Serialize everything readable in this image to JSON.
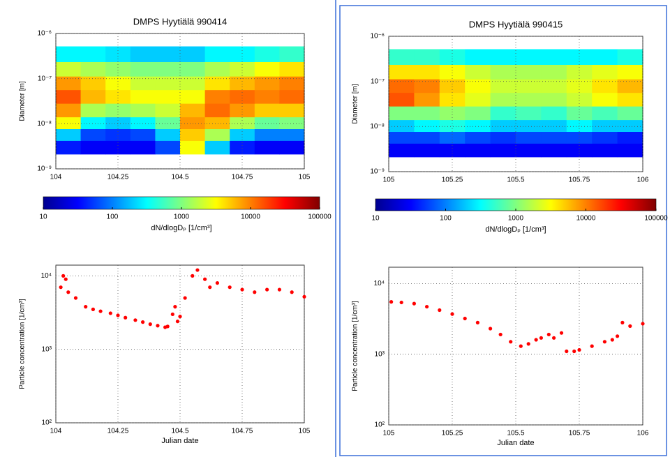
{
  "chart_data": [
    {
      "type": "heatmap",
      "title": "DMPS Hyytiälä 990414",
      "ylabel": "Diameter [m]",
      "x": [
        104.05,
        104.15,
        104.25,
        104.35,
        104.45,
        104.55,
        104.65,
        104.75,
        104.85,
        104.95
      ],
      "y": [
        3e-09,
        6e-09,
        1e-08,
        2e-08,
        4e-08,
        8e-08,
        1.6e-07,
        3.5e-07
      ],
      "z": [
        [
          40,
          30,
          30,
          30,
          60,
          3000,
          200,
          40,
          30,
          30
        ],
        [
          200,
          60,
          50,
          60,
          200,
          5000,
          1500,
          200,
          100,
          100
        ],
        [
          3000,
          300,
          200,
          300,
          800,
          8000,
          6000,
          1500,
          800,
          1000
        ],
        [
          8000,
          1500,
          1200,
          1500,
          2000,
          6000,
          12000,
          8000,
          5000,
          5000
        ],
        [
          15000,
          6000,
          4000,
          3000,
          3000,
          3000,
          10000,
          12000,
          10000,
          12000
        ],
        [
          8000,
          5000,
          3000,
          2000,
          2000,
          2000,
          4000,
          6000,
          8000,
          10000
        ],
        [
          2000,
          1500,
          1200,
          1000,
          1000,
          1000,
          1500,
          2000,
          3000,
          4000
        ],
        [
          300,
          300,
          250,
          200,
          200,
          200,
          300,
          300,
          400,
          500
        ]
      ],
      "xlim": [
        104,
        105
      ],
      "xticks": [
        104,
        104.25,
        104.5,
        104.75,
        105
      ],
      "ylim": [
        1e-09,
        1e-06
      ],
      "yticks": [
        {
          "value": 1e-09,
          "label": "10⁻⁹"
        },
        {
          "value": 1e-08,
          "label": "10⁻⁸"
        },
        {
          "value": 1e-07,
          "label": "10⁻⁷"
        },
        {
          "value": 1e-06,
          "label": "10⁻⁶"
        }
      ],
      "log_y": true,
      "grid": true,
      "colorbar": {
        "label": "dN/dlogDₚ [1/cm³]",
        "lim": [
          10,
          100000
        ],
        "ticks": [
          10,
          100,
          1000,
          10000,
          100000
        ],
        "log": true,
        "colormap": "jet"
      }
    },
    {
      "type": "scatter",
      "xlabel": "Julian date",
      "ylabel": "Particle concentration [1/cm³]",
      "color": "#ff0000",
      "x": [
        104.02,
        104.03,
        104.04,
        104.05,
        104.08,
        104.12,
        104.15,
        104.18,
        104.22,
        104.25,
        104.28,
        104.32,
        104.35,
        104.38,
        104.41,
        104.44,
        104.45,
        104.47,
        104.48,
        104.49,
        104.5,
        104.52,
        104.55,
        104.57,
        104.6,
        104.62,
        104.65,
        104.7,
        104.75,
        104.8,
        104.85,
        104.9,
        104.95,
        105
      ],
      "values": [
        7000,
        10000,
        9000,
        6000,
        5000,
        3800,
        3500,
        3300,
        3100,
        2900,
        2700,
        2500,
        2350,
        2200,
        2100,
        2000,
        2050,
        3000,
        3800,
        2400,
        2800,
        5000,
        10000,
        12000,
        9000,
        7000,
        8000,
        7000,
        6500,
        6000,
        6500,
        6500,
        6000,
        5200
      ],
      "xlim": [
        104,
        105
      ],
      "xticks": [
        104,
        104.25,
        104.5,
        104.75,
        105
      ],
      "ylim": [
        100,
        14000
      ],
      "yticks": [
        {
          "value": 100,
          "label": "10²"
        },
        {
          "value": 1000,
          "label": "10³"
        },
        {
          "value": 10000,
          "label": "10⁴"
        }
      ],
      "log_y": true,
      "grid": true
    },
    {
      "type": "heatmap",
      "title": "DMPS Hyytiälä 990415",
      "ylabel": "Diameter [m]",
      "x": [
        105.05,
        105.15,
        105.25,
        105.35,
        105.45,
        105.55,
        105.65,
        105.75,
        105.85,
        105.95
      ],
      "y": [
        3e-09,
        6e-09,
        1e-08,
        2e-08,
        4e-08,
        8e-08,
        1.6e-07,
        3.5e-07
      ],
      "z": [
        [
          30,
          30,
          30,
          30,
          30,
          30,
          30,
          30,
          30,
          30
        ],
        [
          60,
          60,
          80,
          60,
          50,
          60,
          60,
          60,
          50,
          40
        ],
        [
          200,
          300,
          400,
          300,
          200,
          200,
          200,
          300,
          200,
          200
        ],
        [
          1000,
          1000,
          1200,
          1000,
          500,
          600,
          500,
          800,
          600,
          800
        ],
        [
          15000,
          8000,
          4000,
          2500,
          1500,
          1500,
          1500,
          2000,
          3000,
          4000
        ],
        [
          12000,
          10000,
          5000,
          3000,
          2000,
          2000,
          2000,
          2500,
          4000,
          6000
        ],
        [
          4000,
          4000,
          3000,
          2000,
          1500,
          1500,
          1500,
          2000,
          2500,
          3000
        ],
        [
          500,
          500,
          400,
          300,
          300,
          300,
          300,
          300,
          300,
          400
        ]
      ],
      "xlim": [
        105,
        106
      ],
      "xticks": [
        105,
        105.25,
        105.5,
        105.75,
        106
      ],
      "ylim": [
        1e-09,
        1e-06
      ],
      "yticks": [
        {
          "value": 1e-09,
          "label": "10⁻⁹"
        },
        {
          "value": 1e-08,
          "label": "10⁻⁸"
        },
        {
          "value": 1e-07,
          "label": "10⁻⁷"
        },
        {
          "value": 1e-06,
          "label": "10⁻⁶"
        }
      ],
      "log_y": true,
      "grid": true,
      "colorbar": {
        "label": "dN/dlogDₚ [1/cm³]",
        "lim": [
          10,
          100000
        ],
        "ticks": [
          10,
          100,
          1000,
          10000,
          100000
        ],
        "log": true,
        "colormap": "jet"
      }
    },
    {
      "type": "scatter",
      "xlabel": "Julian date",
      "ylabel": "Particle concentration [1/cm³]",
      "color": "#ff0000",
      "x": [
        105.01,
        105.05,
        105.1,
        105.15,
        105.2,
        105.25,
        105.3,
        105.35,
        105.4,
        105.44,
        105.48,
        105.52,
        105.55,
        105.58,
        105.6,
        105.63,
        105.65,
        105.68,
        105.7,
        105.73,
        105.75,
        105.8,
        105.85,
        105.88,
        105.9,
        105.92,
        105.95,
        106
      ],
      "values": [
        5500,
        5400,
        5200,
        4700,
        4200,
        3700,
        3200,
        2800,
        2300,
        1900,
        1500,
        1300,
        1400,
        1600,
        1700,
        1900,
        1700,
        2000,
        1100,
        1100,
        1150,
        1300,
        1500,
        1600,
        1800,
        2800,
        2500,
        2700
      ],
      "xlim": [
        105,
        106
      ],
      "xticks": [
        105,
        105.25,
        105.5,
        105.75,
        106
      ],
      "ylim": [
        100,
        17000
      ],
      "yticks": [
        {
          "value": 100,
          "label": "10²"
        },
        {
          "value": 1000,
          "label": "10³"
        },
        {
          "value": 10000,
          "label": "10⁴"
        }
      ],
      "log_y": true,
      "grid": true
    }
  ]
}
